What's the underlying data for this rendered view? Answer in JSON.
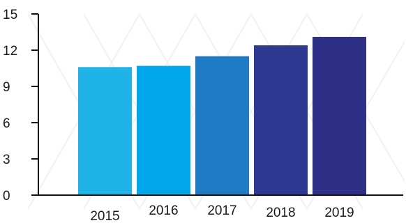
{
  "chart_data": {
    "type": "bar",
    "categories": [
      "2015",
      "2016",
      "2017",
      "2018",
      "2019"
    ],
    "values": [
      10.6,
      10.7,
      11.5,
      12.4,
      13.1
    ],
    "bar_colors": [
      "#1fb3e8",
      "#00a6ea",
      "#1f7bc4",
      "#2e3a92",
      "#2e2f86"
    ],
    "title": "",
    "xlabel": "",
    "ylabel": "",
    "ylim": [
      0,
      15
    ],
    "yticks": [
      "0",
      "3",
      "6",
      "9",
      "12",
      "15"
    ],
    "grid": false,
    "legend": "none"
  }
}
